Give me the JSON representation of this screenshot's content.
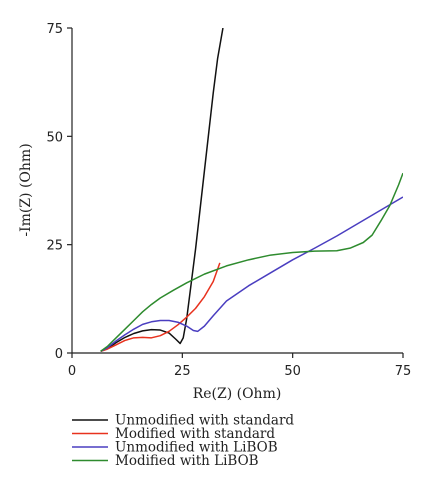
{
  "chart_data": {
    "type": "line",
    "title": "",
    "xlabel": "Re(Z) (Ohm)",
    "ylabel": "-Im(Z) (Ohm)",
    "xlim": [
      0,
      75
    ],
    "ylim": [
      0,
      75
    ],
    "xticks": [
      0,
      25,
      50,
      75
    ],
    "yticks": [
      0,
      25,
      50,
      75
    ],
    "legend_position": "bottom",
    "series": [
      {
        "name": "Unmodified with standard",
        "color": "#111111",
        "points": [
          [
            6.5,
            0.4
          ],
          [
            8,
            1.0
          ],
          [
            10,
            2.4
          ],
          [
            12,
            3.6
          ],
          [
            14,
            4.5
          ],
          [
            16,
            5.1
          ],
          [
            18,
            5.4
          ],
          [
            20,
            5.3
          ],
          [
            22,
            4.6
          ],
          [
            23.5,
            3.2
          ],
          [
            24.5,
            2.2
          ],
          [
            25.2,
            3.5
          ],
          [
            26,
            8
          ],
          [
            27,
            16
          ],
          [
            28,
            24
          ],
          [
            29,
            33
          ],
          [
            30,
            42
          ],
          [
            31,
            51
          ],
          [
            32,
            60
          ],
          [
            33,
            68
          ],
          [
            34.2,
            75
          ]
        ]
      },
      {
        "name": "Modified with standard",
        "color": "#e8321e",
        "points": [
          [
            6.5,
            0.4
          ],
          [
            8,
            0.9
          ],
          [
            10,
            1.9
          ],
          [
            12,
            2.9
          ],
          [
            14,
            3.5
          ],
          [
            16,
            3.6
          ],
          [
            18,
            3.5
          ],
          [
            20,
            4.0
          ],
          [
            22,
            5.0
          ],
          [
            24,
            6.5
          ],
          [
            26,
            8.3
          ],
          [
            28,
            10.3
          ],
          [
            30,
            13
          ],
          [
            32,
            16.5
          ],
          [
            33.5,
            20.8
          ]
        ]
      },
      {
        "name": "Unmodified with LiBOB",
        "color": "#4a3ec0",
        "points": [
          [
            6.5,
            0.4
          ],
          [
            8,
            1.2
          ],
          [
            10,
            2.8
          ],
          [
            12,
            4.2
          ],
          [
            14,
            5.5
          ],
          [
            16,
            6.6
          ],
          [
            18,
            7.2
          ],
          [
            20,
            7.5
          ],
          [
            22,
            7.5
          ],
          [
            24,
            7.1
          ],
          [
            26,
            6.2
          ],
          [
            27.5,
            5.2
          ],
          [
            28.5,
            5.0
          ],
          [
            30,
            6.2
          ],
          [
            32,
            8.6
          ],
          [
            35,
            12
          ],
          [
            40,
            15.5
          ],
          [
            45,
            18.5
          ],
          [
            50,
            21.5
          ],
          [
            55,
            24.2
          ],
          [
            60,
            27
          ],
          [
            65,
            30
          ],
          [
            70,
            33
          ],
          [
            75,
            36
          ]
        ]
      },
      {
        "name": "Modified with LiBOB",
        "color": "#2e8b2e",
        "points": [
          [
            6.5,
            0.4
          ],
          [
            8,
            1.5
          ],
          [
            10,
            3.5
          ],
          [
            12,
            5.5
          ],
          [
            14,
            7.5
          ],
          [
            16,
            9.5
          ],
          [
            18,
            11.2
          ],
          [
            20,
            12.7
          ],
          [
            23,
            14.5
          ],
          [
            26,
            16.2
          ],
          [
            30,
            18.2
          ],
          [
            35,
            20.1
          ],
          [
            40,
            21.5
          ],
          [
            45,
            22.6
          ],
          [
            50,
            23.2
          ],
          [
            55,
            23.5
          ],
          [
            60,
            23.6
          ],
          [
            63,
            24.2
          ],
          [
            66,
            25.5
          ],
          [
            68,
            27.2
          ],
          [
            70,
            30.5
          ],
          [
            72,
            34
          ],
          [
            74,
            38.8
          ],
          [
            75,
            41.5
          ]
        ]
      }
    ]
  }
}
